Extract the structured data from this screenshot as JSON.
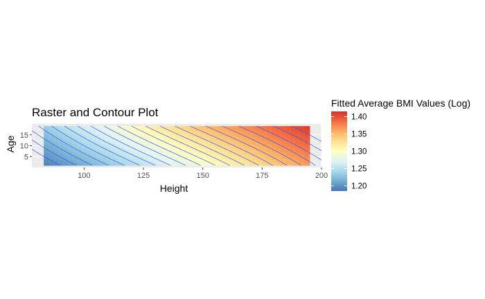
{
  "chart_data": {
    "type": "heatmap",
    "title": "Raster and Contour Plot",
    "xlabel": "Height",
    "ylabel": "Age",
    "xlim": [
      78,
      200
    ],
    "ylim": [
      0,
      20
    ],
    "x_data_range": [
      83,
      195
    ],
    "y_data_range": [
      1,
      19
    ],
    "x_ticks": [
      "100",
      "125",
      "150",
      "175",
      "200"
    ],
    "y_ticks": [
      "5",
      "10",
      "15"
    ],
    "grid": true,
    "legend": {
      "title": "Fitted Average BMI Values (Log)",
      "placement": "right",
      "ticks": [
        "1.20",
        "1.25",
        "1.30",
        "1.35",
        "1.40"
      ],
      "range": [
        1.185,
        1.415
      ],
      "colors": [
        "#4575b4",
        "#74add1",
        "#abd9e9",
        "#e0f3f8",
        "#ffffbf",
        "#fee090",
        "#fdae61",
        "#f46d43",
        "#d73027"
      ]
    },
    "surface": {
      "description_values": "fitted log BMI rises with Height and with Age",
      "low_corner": {
        "height": 83,
        "age": 1,
        "value": 1.19
      },
      "high_corner": {
        "height": 195,
        "age": 19,
        "value": 1.41
      }
    },
    "contour_color": "#3355ff",
    "contour_levels": [
      1.2,
      1.21,
      1.22,
      1.23,
      1.24,
      1.25,
      1.26,
      1.27,
      1.28,
      1.29,
      1.3,
      1.31,
      1.32,
      1.33,
      1.34,
      1.35,
      1.36,
      1.37,
      1.38,
      1.39,
      1.4
    ]
  }
}
